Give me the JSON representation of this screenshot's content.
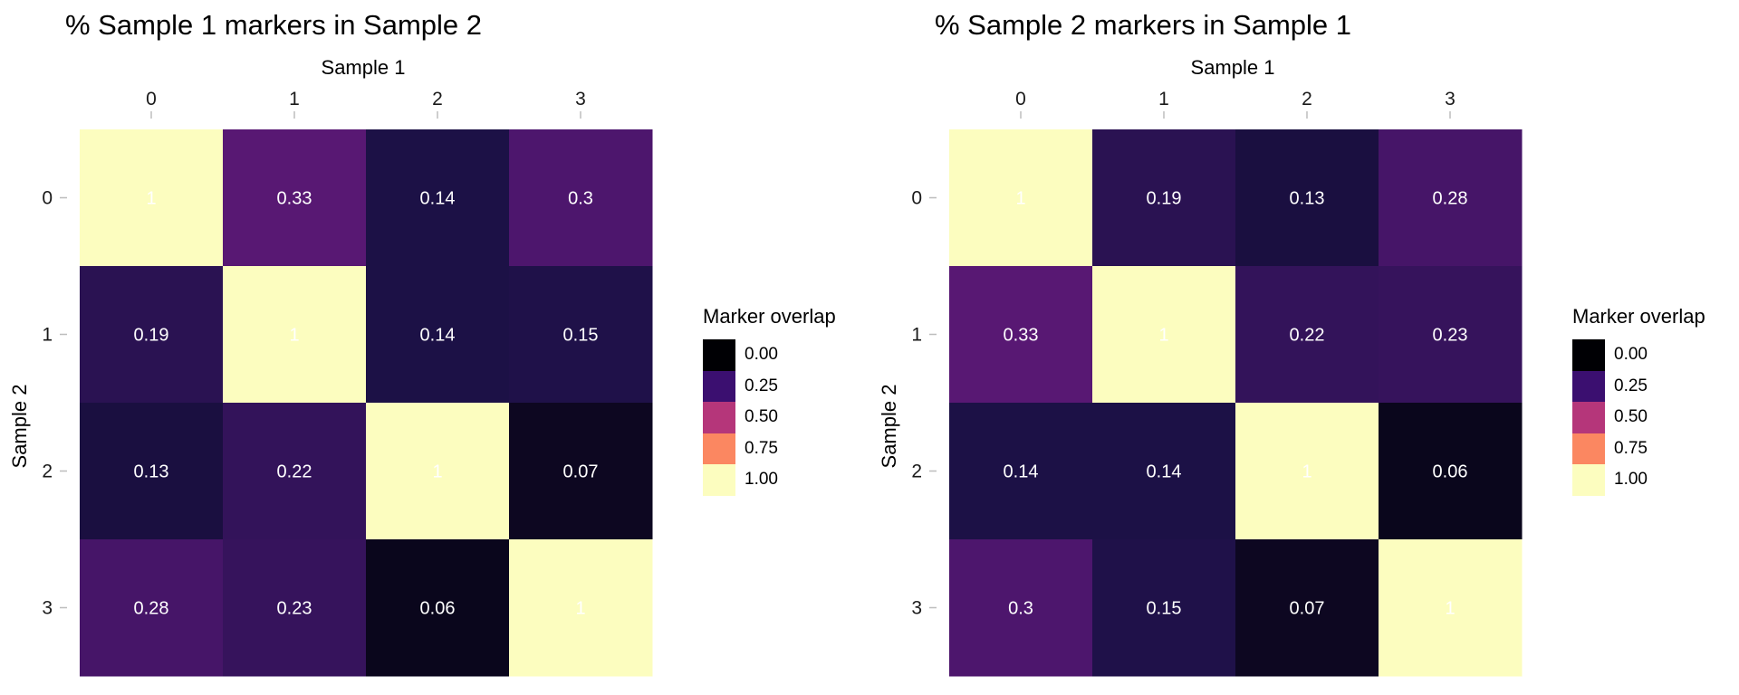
{
  "chart_data": [
    {
      "type": "heatmap",
      "title": "% Sample 1 markers in Sample 2",
      "xlabel": "Sample 1",
      "ylabel": "Sample 2",
      "x_categories": [
        "0",
        "1",
        "2",
        "3"
      ],
      "y_categories": [
        "0",
        "1",
        "2",
        "3"
      ],
      "x_axis_position": "top",
      "values": [
        [
          1,
          0.33,
          0.14,
          0.3
        ],
        [
          0.19,
          1,
          0.14,
          0.15
        ],
        [
          0.13,
          0.22,
          1,
          0.07
        ],
        [
          0.28,
          0.23,
          0.06,
          1
        ]
      ],
      "cell_labels": [
        [
          "1",
          "0.33",
          "0.14",
          "0.3"
        ],
        [
          "0.19",
          "1",
          "0.14",
          "0.15"
        ],
        [
          "0.13",
          "0.22",
          "1",
          "0.07"
        ],
        [
          "0.28",
          "0.23",
          "0.06",
          "1"
        ]
      ],
      "colorscale": "magma",
      "zlim": [
        0,
        1
      ],
      "legend": {
        "title": "Marker overlap",
        "position": "right",
        "breaks": [
          "0.00",
          "0.25",
          "0.50",
          "0.75",
          "1.00"
        ],
        "colors": [
          "#000004",
          "#3b0f70",
          "#b5367a",
          "#fb8761",
          "#fcfdbf"
        ]
      }
    },
    {
      "type": "heatmap",
      "title": "% Sample 2 markers in Sample 1",
      "xlabel": "Sample 1",
      "ylabel": "Sample 2",
      "x_categories": [
        "0",
        "1",
        "2",
        "3"
      ],
      "y_categories": [
        "0",
        "1",
        "2",
        "3"
      ],
      "x_axis_position": "top",
      "values": [
        [
          1,
          0.19,
          0.13,
          0.28
        ],
        [
          0.33,
          1,
          0.22,
          0.23
        ],
        [
          0.14,
          0.14,
          1,
          0.06
        ],
        [
          0.3,
          0.15,
          0.07,
          1
        ]
      ],
      "cell_labels": [
        [
          "1",
          "0.19",
          "0.13",
          "0.28"
        ],
        [
          "0.33",
          "1",
          "0.22",
          "0.23"
        ],
        [
          "0.14",
          "0.14",
          "1",
          "0.06"
        ],
        [
          "0.3",
          "0.15",
          "0.07",
          "1"
        ]
      ],
      "colorscale": "magma",
      "zlim": [
        0,
        1
      ],
      "legend": {
        "title": "Marker overlap",
        "position": "right",
        "breaks": [
          "0.00",
          "0.25",
          "0.50",
          "0.75",
          "1.00"
        ],
        "colors": [
          "#000004",
          "#3b0f70",
          "#b5367a",
          "#fb8761",
          "#fcfdbf"
        ]
      }
    }
  ]
}
